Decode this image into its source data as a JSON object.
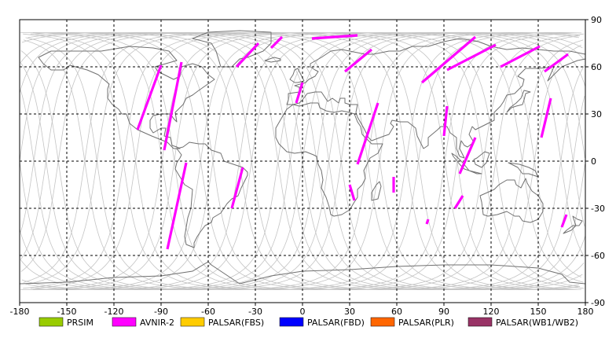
{
  "map": {
    "projection": "equirectangular",
    "lon_range": [
      -180,
      180
    ],
    "lat_range": [
      -90,
      90
    ],
    "grid": "dashed",
    "x_ticks": [
      "-180",
      "-150",
      "-120",
      "-90",
      "-60",
      "-30",
      "0",
      "30",
      "60",
      "90",
      "120",
      "150",
      "180"
    ],
    "y_ticks": [
      "90",
      "60",
      "30",
      "0",
      "-30",
      "-60",
      "-90"
    ],
    "y_tick_values": [
      90,
      60,
      30,
      0,
      -30,
      -60,
      -90
    ],
    "colors": {
      "coastline": "#707070",
      "orbit_track": "#c4c4c4",
      "grid": "#000000"
    }
  },
  "legend": [
    {
      "label": "PRSIM",
      "color": "#99cc00"
    },
    {
      "label": "AVNIR-2",
      "color": "#ff00ff"
    },
    {
      "label": "PALSAR(FBS)",
      "color": "#ffcc00"
    },
    {
      "label": "PALSAR(FBD)",
      "color": "#0000ff"
    },
    {
      "label": "PALSAR(PLR)",
      "color": "#ff6600"
    },
    {
      "label": "PALSAR(WB1/WB2)",
      "color": "#993366"
    }
  ],
  "chart_data": {
    "type": "map",
    "series": [
      {
        "name": "AVNIR-2",
        "color": "#ff00ff",
        "segments": [
          [
            [
              -90,
              61
            ],
            [
              -105,
              20
            ]
          ],
          [
            [
              -77,
              63
            ],
            [
              -88,
              7
            ]
          ],
          [
            [
              -74,
              -1
            ],
            [
              -86,
              -56
            ]
          ],
          [
            [
              -38,
              -4
            ],
            [
              -45,
              -30
            ]
          ],
          [
            [
              -28,
              75
            ],
            [
              -42,
              60
            ]
          ],
          [
            [
              -13,
              79
            ],
            [
              -20,
              72
            ]
          ],
          [
            [
              6,
              78
            ],
            [
              35,
              80
            ]
          ],
          [
            [
              0,
              50
            ],
            [
              -4,
              37
            ]
          ],
          [
            [
              44,
              71
            ],
            [
              27,
              57
            ]
          ],
          [
            [
              48,
              37
            ],
            [
              35,
              -2
            ]
          ],
          [
            [
              30,
              -15
            ],
            [
              33,
              -25
            ]
          ],
          [
            [
              58,
              -10
            ],
            [
              58,
              -20
            ]
          ],
          [
            [
              110,
              79
            ],
            [
              76,
              50
            ]
          ],
          [
            [
              123,
              74
            ],
            [
              92,
              58
            ]
          ],
          [
            [
              151,
              73
            ],
            [
              126,
              60
            ]
          ],
          [
            [
              169,
              68
            ],
            [
              154,
              57
            ]
          ],
          [
            [
              92,
              35
            ],
            [
              90,
              16
            ]
          ],
          [
            [
              110,
              15
            ],
            [
              100,
              -8
            ]
          ],
          [
            [
              158,
              40
            ],
            [
              152,
              15
            ]
          ],
          [
            [
              102,
              -22
            ],
            [
              97,
              -30
            ]
          ],
          [
            [
              80,
              -37
            ],
            [
              79,
              -40
            ]
          ],
          [
            [
              168,
              -34
            ],
            [
              165,
              -42
            ]
          ]
        ]
      }
    ]
  }
}
